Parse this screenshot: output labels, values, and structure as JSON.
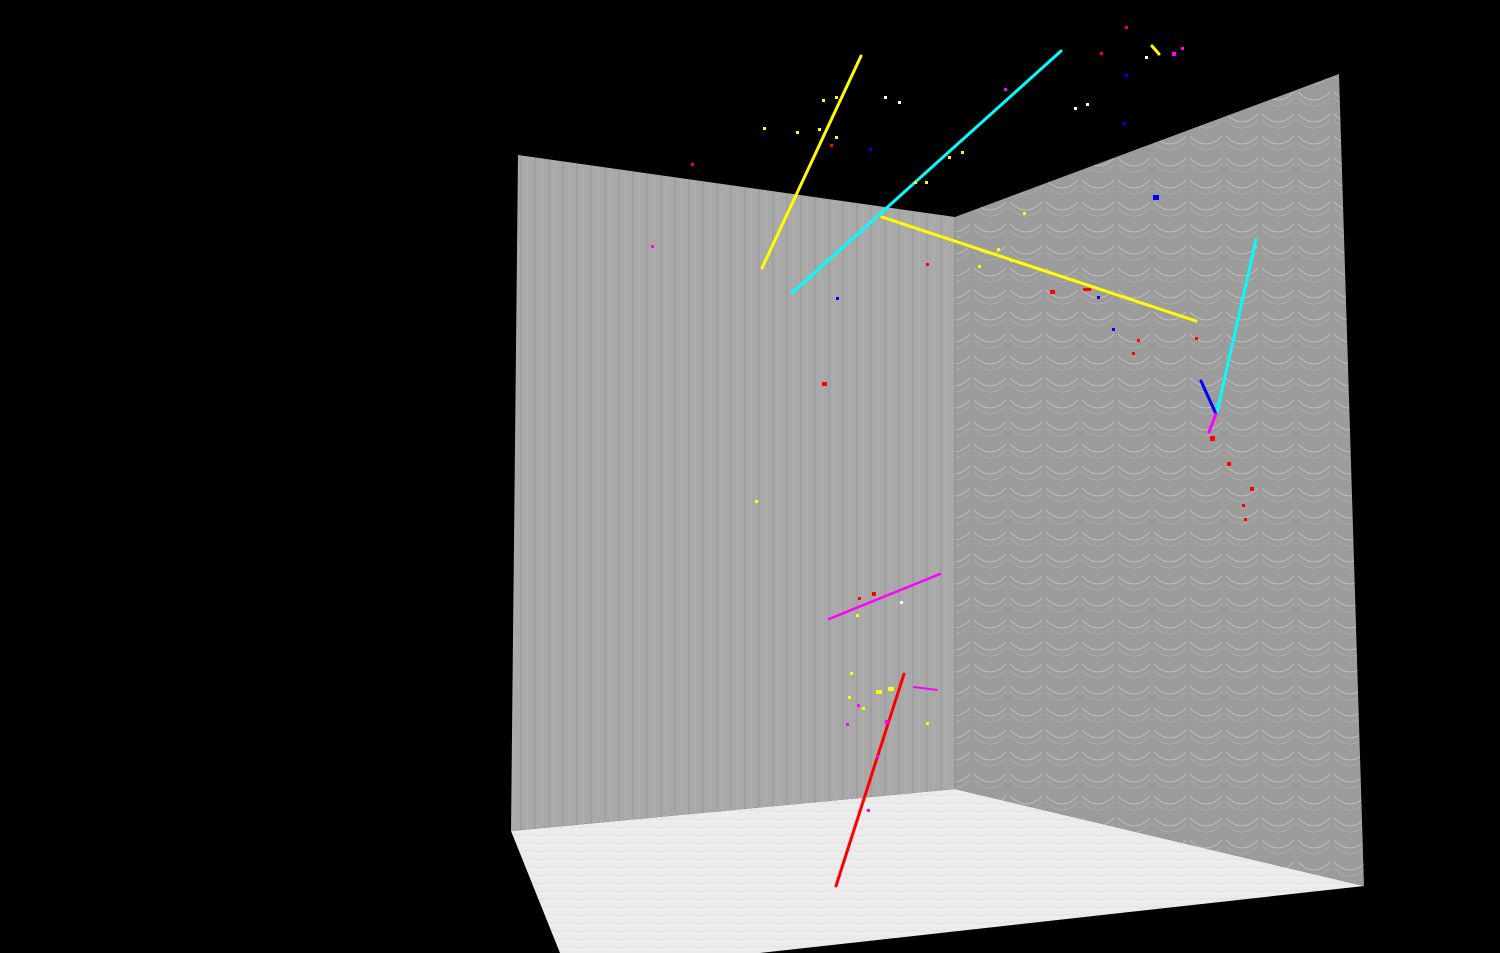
{
  "scene": {
    "background": "#000000",
    "wall_left_color": "#a9a9a9",
    "wall_right_color": "#9a9a9a",
    "floor_color": "#f0f0f0",
    "track_colors": {
      "yellow": "#ffff00",
      "cyan": "#00ffff",
      "red": "#ff0000",
      "magenta": "#ff00ff",
      "blue": "#0000ff",
      "white": "#ffffff"
    }
  }
}
